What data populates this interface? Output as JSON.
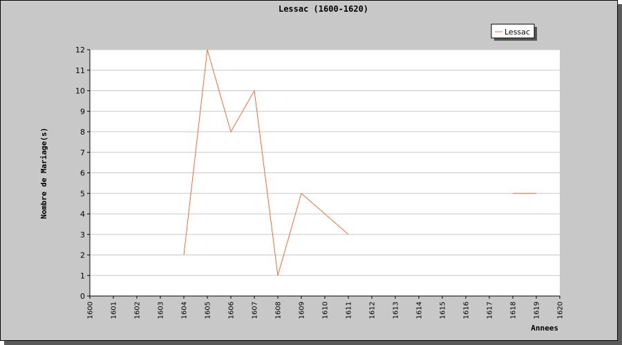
{
  "chart_data": {
    "type": "line",
    "title": "Lessac (1600-1620)",
    "xlabel": "Annees",
    "ylabel": "Nombre de Mariage(s)",
    "xlim": [
      1600,
      1620
    ],
    "ylim": [
      0,
      12
    ],
    "x_ticks": [
      "1600",
      "1601",
      "1602",
      "1603",
      "1604",
      "1605",
      "1606",
      "1607",
      "1608",
      "1609",
      "1610",
      "1611",
      "1612",
      "1613",
      "1614",
      "1615",
      "1616",
      "1617",
      "1618",
      "1619",
      "1620"
    ],
    "y_ticks": [
      "0",
      "1",
      "2",
      "3",
      "4",
      "5",
      "6",
      "7",
      "8",
      "9",
      "10",
      "11",
      "12"
    ],
    "grid": true,
    "legend": {
      "position": "top-right",
      "entries": [
        "Lessac"
      ]
    },
    "series": [
      {
        "name": "Lessac",
        "color": "#ff6633",
        "segments": [
          [
            {
              "x": 1604,
              "y": 2
            },
            {
              "x": 1605,
              "y": 12
            },
            {
              "x": 1606,
              "y": 8
            },
            {
              "x": 1607,
              "y": 10
            },
            {
              "x": 1608,
              "y": 1
            },
            {
              "x": 1609,
              "y": 5
            },
            {
              "x": 1610,
              "y": 4
            },
            {
              "x": 1611,
              "y": 3
            }
          ],
          [
            {
              "x": 1618,
              "y": 5
            },
            {
              "x": 1619,
              "y": 5
            }
          ]
        ]
      }
    ]
  }
}
